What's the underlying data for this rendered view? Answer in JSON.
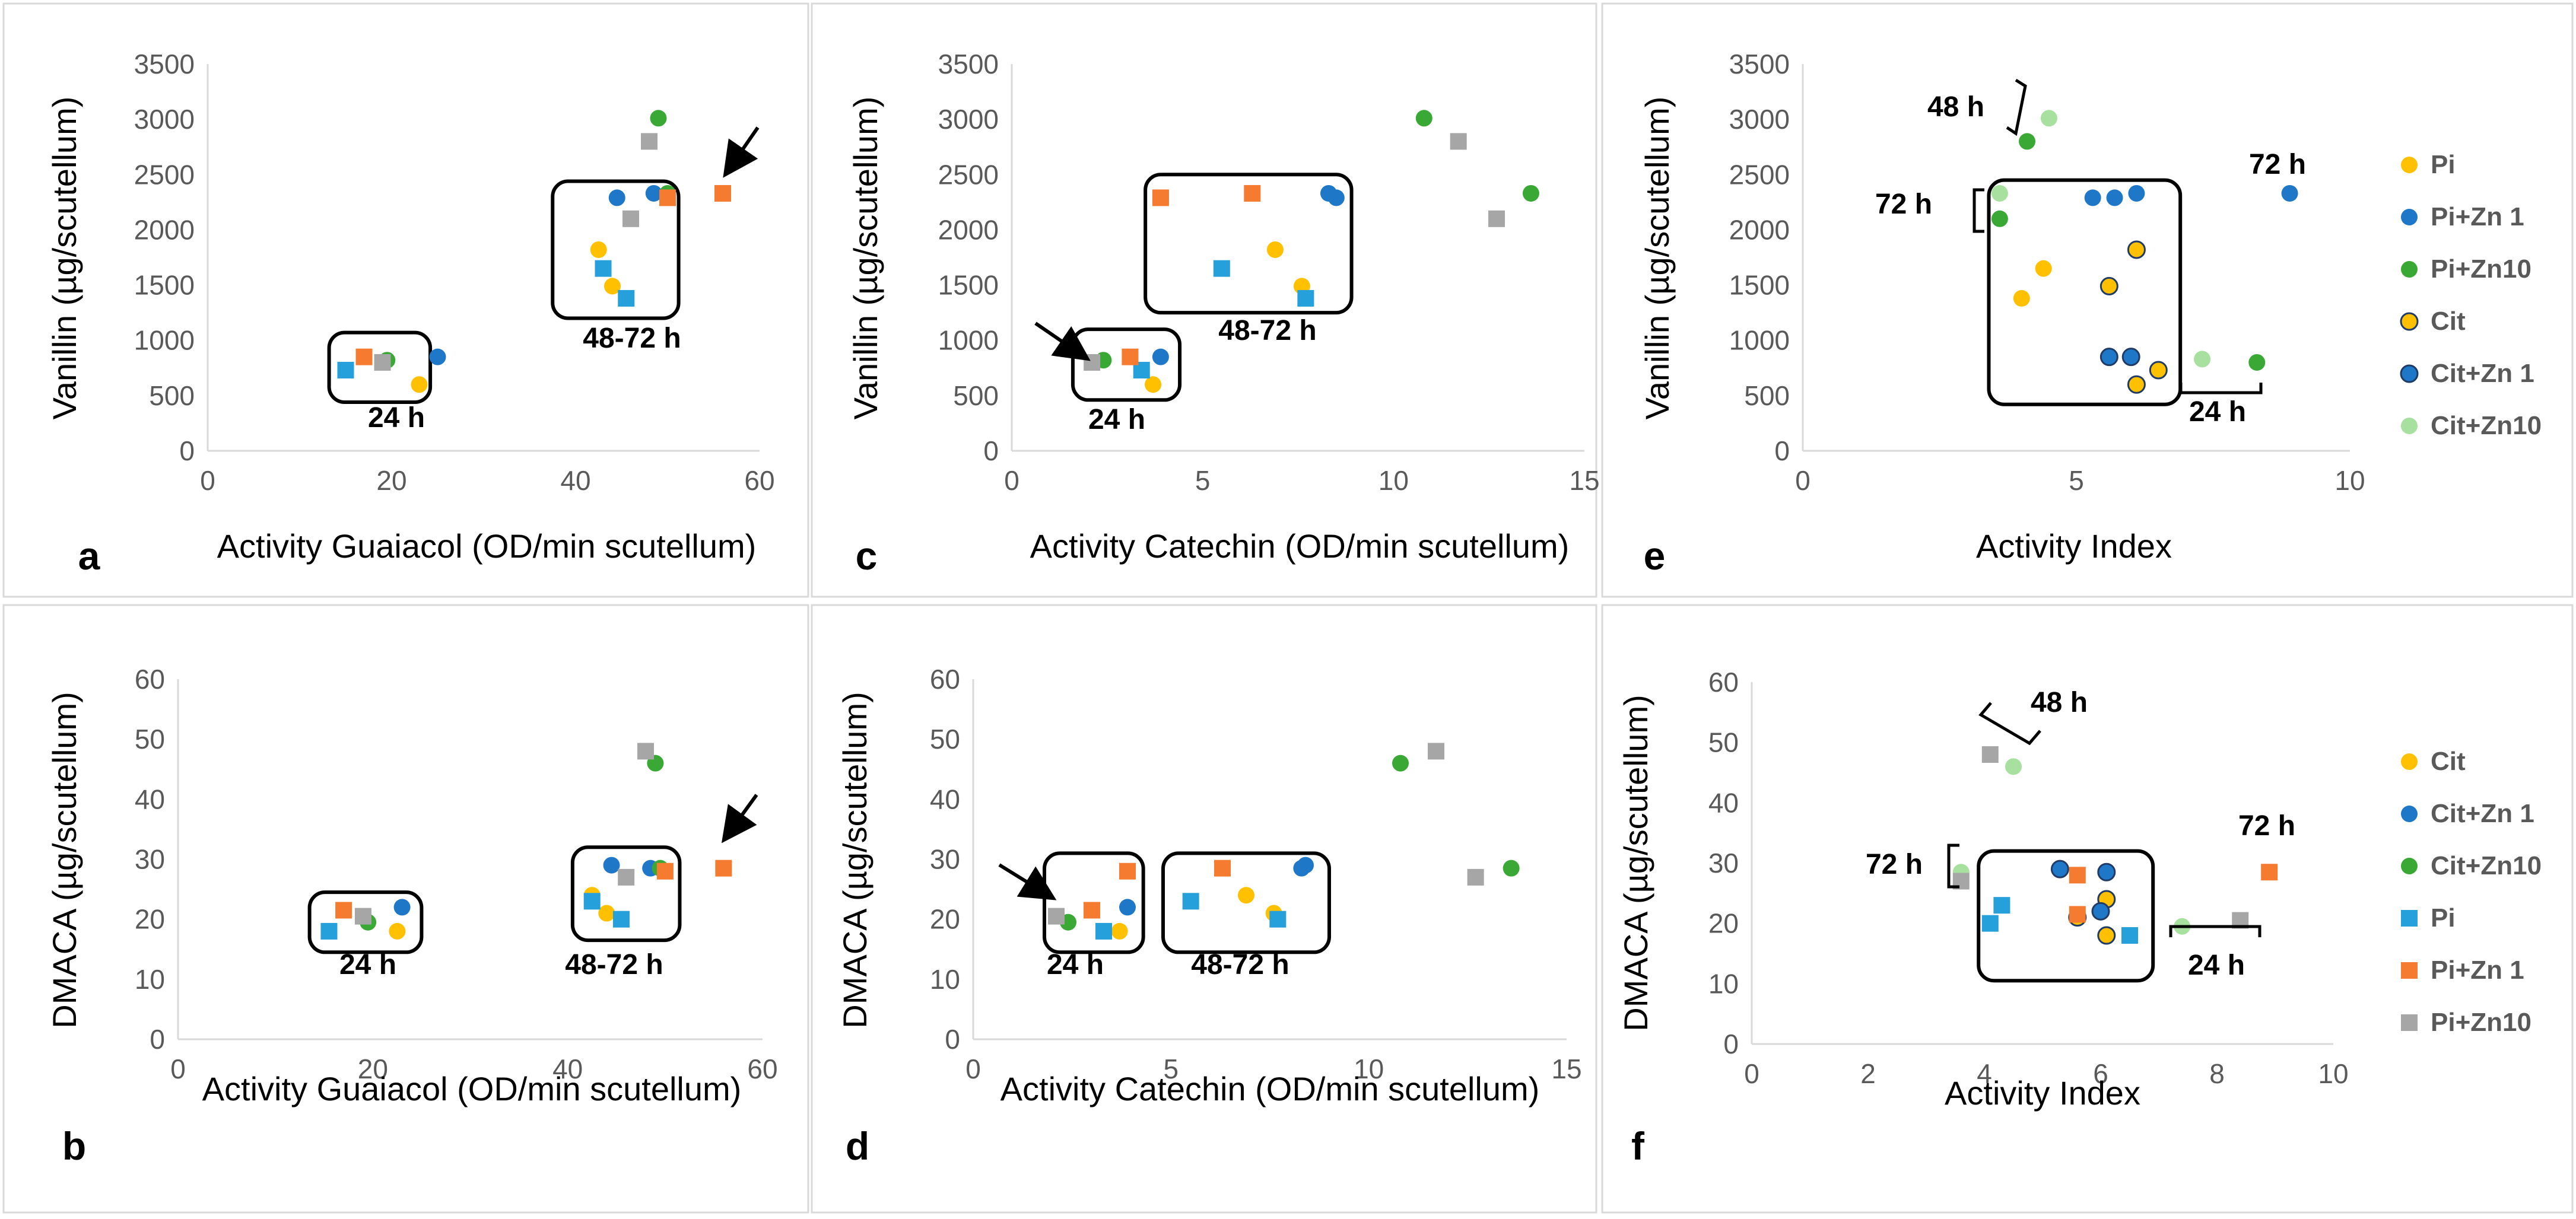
{
  "colors": {
    "Pi": "#ffc000",
    "Pi+Zn 1": "#1f77c8",
    "Pi+Zn10": "#3aa835",
    "Cit": "#ffc000",
    "Cit+Zn 1": "#1f77c8",
    "Cit+Zn10": "#a8e0a0",
    "sq_Pi": "#26a0da",
    "sq_PiZn1": "#f47b30",
    "sq_PiZn10": "#a6a6a6"
  },
  "chart_data": [
    {
      "id": "a",
      "type": "scatter",
      "panel_label": "a",
      "xlabel": "Activity Guaiacol (OD/min scutellum)",
      "ylabel": "Vanillin (µg/scutellum)",
      "xlim": [
        0,
        60
      ],
      "ylim": [
        0,
        3500
      ],
      "xticks": [
        0,
        20,
        40,
        60
      ],
      "yticks": [
        0,
        500,
        1000,
        1500,
        2000,
        2500,
        3000,
        3500
      ],
      "xtick_labels": [
        "0",
        "20",
        "40",
        "60"
      ],
      "ytick_labels": [
        "0",
        "500",
        "1000",
        "1500",
        "2000",
        "2500",
        "3000",
        "3500"
      ],
      "points": [
        {
          "series": "Pi",
          "marker": "circle",
          "x": 23,
          "y": 600
        },
        {
          "series": "Pi+Zn 1",
          "marker": "circle",
          "x": 25,
          "y": 850
        },
        {
          "series": "Pi+Zn10",
          "marker": "circle",
          "x": 19.5,
          "y": 820
        },
        {
          "series": "Pi",
          "marker": "square",
          "x": 15,
          "y": 730
        },
        {
          "series": "Pi+Zn 1",
          "marker": "square",
          "x": 17,
          "y": 850
        },
        {
          "series": "Pi+Zn10",
          "marker": "square",
          "x": 19,
          "y": 800
        },
        {
          "series": "Pi",
          "marker": "circle",
          "x": 42.5,
          "y": 1820
        },
        {
          "series": "Pi",
          "marker": "circle",
          "x": 44,
          "y": 1490
        },
        {
          "series": "Pi+Zn 1",
          "marker": "circle",
          "x": 44.5,
          "y": 2290
        },
        {
          "series": "Pi+Zn 1",
          "marker": "circle",
          "x": 48.5,
          "y": 2330
        },
        {
          "series": "Pi+Zn10",
          "marker": "circle",
          "x": 49,
          "y": 3010
        },
        {
          "series": "Pi+Zn10",
          "marker": "circle",
          "x": 50,
          "y": 2330
        },
        {
          "series": "Pi",
          "marker": "square",
          "x": 43,
          "y": 1650
        },
        {
          "series": "Pi",
          "marker": "square",
          "x": 45.5,
          "y": 1380
        },
        {
          "series": "Pi+Zn 1",
          "marker": "square",
          "x": 50,
          "y": 2290
        },
        {
          "series": "Pi+Zn 1",
          "marker": "square",
          "x": 56,
          "y": 2330
        },
        {
          "series": "Pi+Zn10",
          "marker": "square",
          "x": 46,
          "y": 2100
        },
        {
          "series": "Pi+Zn10",
          "marker": "square",
          "x": 48,
          "y": 2800
        }
      ],
      "boxes": [
        {
          "label": "24 h",
          "x0": 13.2,
          "x1": 24.2,
          "y0": 440,
          "y1": 1070
        },
        {
          "label": "48-72 h",
          "x0": 37.5,
          "x1": 51.2,
          "y0": 1200,
          "y1": 2440
        }
      ],
      "labels_text": [
        "24 h",
        "48-72 h"
      ]
    },
    {
      "id": "b",
      "type": "scatter",
      "panel_label": "b",
      "xlabel": "Activity Guaiacol (OD/min scutellum)",
      "ylabel": "DMACA (µg/scutellum)",
      "xlim": [
        0,
        60
      ],
      "ylim": [
        0,
        60
      ],
      "xticks": [
        0,
        20,
        40,
        60
      ],
      "yticks": [
        0,
        10,
        20,
        30,
        40,
        50,
        60
      ],
      "xtick_labels": [
        "0",
        "20",
        "40",
        "60"
      ],
      "ytick_labels": [
        "0",
        "10",
        "20",
        "30",
        "40",
        "50",
        "60"
      ],
      "points": [
        {
          "series": "Pi",
          "marker": "circle",
          "x": 22.5,
          "y": 18
        },
        {
          "series": "Pi+Zn 1",
          "marker": "circle",
          "x": 23,
          "y": 22
        },
        {
          "series": "Pi+Zn10",
          "marker": "circle",
          "x": 19.5,
          "y": 19.5
        },
        {
          "series": "Pi",
          "marker": "square",
          "x": 15.5,
          "y": 18
        },
        {
          "series": "Pi+Zn 1",
          "marker": "square",
          "x": 17,
          "y": 21.5
        },
        {
          "series": "Pi+Zn10",
          "marker": "square",
          "x": 19,
          "y": 20.5
        },
        {
          "series": "Pi",
          "marker": "circle",
          "x": 42.5,
          "y": 24
        },
        {
          "series": "Pi",
          "marker": "circle",
          "x": 44,
          "y": 21
        },
        {
          "series": "Pi+Zn 1",
          "marker": "circle",
          "x": 44.5,
          "y": 29
        },
        {
          "series": "Pi+Zn 1",
          "marker": "circle",
          "x": 48.5,
          "y": 28.5
        },
        {
          "series": "Pi+Zn10",
          "marker": "circle",
          "x": 49,
          "y": 46
        },
        {
          "series": "Pi+Zn10",
          "marker": "circle",
          "x": 49.5,
          "y": 28.5
        },
        {
          "series": "Pi",
          "marker": "square",
          "x": 42.5,
          "y": 23
        },
        {
          "series": "Pi",
          "marker": "square",
          "x": 45.5,
          "y": 20
        },
        {
          "series": "Pi+Zn 1",
          "marker": "square",
          "x": 50,
          "y": 28
        },
        {
          "series": "Pi+Zn 1",
          "marker": "square",
          "x": 56,
          "y": 28.5
        },
        {
          "series": "Pi+Zn10",
          "marker": "square",
          "x": 46,
          "y": 27
        },
        {
          "series": "Pi+Zn10",
          "marker": "square",
          "x": 48,
          "y": 48
        }
      ],
      "boxes": [
        {
          "label": "24 h",
          "x0": 13.5,
          "x1": 25,
          "y0": 14.5,
          "y1": 24.5
        },
        {
          "label": "48-72 h",
          "x0": 40.5,
          "x1": 51.5,
          "y0": 16.5,
          "y1": 32
        }
      ],
      "labels_text": [
        "24 h",
        "48-72 h"
      ]
    },
    {
      "id": "c",
      "type": "scatter",
      "panel_label": "c",
      "xlabel": "Activity Catechin (OD/min scutellum)",
      "ylabel": "Vanillin (µg/scutellum)",
      "xlim": [
        0,
        15
      ],
      "ylim": [
        0,
        3500
      ],
      "xticks": [
        0,
        5,
        10,
        15
      ],
      "yticks": [
        0,
        500,
        1000,
        1500,
        2000,
        2500,
        3000,
        3500
      ],
      "xtick_labels": [
        "0",
        "5",
        "10",
        "15"
      ],
      "ytick_labels": [
        "0",
        "500",
        "1000",
        "1500",
        "2000",
        "2500",
        "3000",
        "3500"
      ],
      "points": [
        {
          "series": "Pi",
          "marker": "circle",
          "x": 3.7,
          "y": 600
        },
        {
          "series": "Pi+Zn 1",
          "marker": "circle",
          "x": 3.9,
          "y": 850
        },
        {
          "series": "Pi+Zn10",
          "marker": "circle",
          "x": 2.4,
          "y": 820
        },
        {
          "series": "Pi",
          "marker": "square",
          "x": 3.4,
          "y": 730
        },
        {
          "series": "Pi+Zn 1",
          "marker": "square",
          "x": 3.1,
          "y": 850
        },
        {
          "series": "Pi+Zn10",
          "marker": "square",
          "x": 2.1,
          "y": 800
        },
        {
          "series": "Pi",
          "marker": "circle",
          "x": 6.9,
          "y": 1820
        },
        {
          "series": "Pi",
          "marker": "circle",
          "x": 7.6,
          "y": 1490
        },
        {
          "series": "Pi+Zn 1",
          "marker": "circle",
          "x": 8.3,
          "y": 2330
        },
        {
          "series": "Pi+Zn 1",
          "marker": "circle",
          "x": 8.5,
          "y": 2290
        },
        {
          "series": "Pi+Zn10",
          "marker": "circle",
          "x": 10.8,
          "y": 3010
        },
        {
          "series": "Pi+Zn10",
          "marker": "circle",
          "x": 13.6,
          "y": 2330
        },
        {
          "series": "Pi",
          "marker": "square",
          "x": 5.5,
          "y": 1650
        },
        {
          "series": "Pi",
          "marker": "square",
          "x": 7.7,
          "y": 1380
        },
        {
          "series": "Pi+Zn 1",
          "marker": "square",
          "x": 3.9,
          "y": 2290
        },
        {
          "series": "Pi+Zn 1",
          "marker": "square",
          "x": 6.3,
          "y": 2330
        },
        {
          "series": "Pi+Zn10",
          "marker": "square",
          "x": 12.7,
          "y": 2100
        },
        {
          "series": "Pi+Zn10",
          "marker": "square",
          "x": 11.7,
          "y": 2800
        }
      ],
      "boxes": [
        {
          "label": "24 h",
          "x0": 1.6,
          "x1": 4.4,
          "y0": 460,
          "y1": 1100
        },
        {
          "label": "48-72 h",
          "x0": 3.5,
          "x1": 8.9,
          "y0": 1250,
          "y1": 2500
        }
      ],
      "labels_text": [
        "24 h",
        "48-72 h"
      ]
    },
    {
      "id": "d",
      "type": "scatter",
      "panel_label": "d",
      "xlabel": "Activity Catechin (OD/min scutellum)",
      "ylabel": "DMACA (µg/scutellum)",
      "xlim": [
        0,
        15
      ],
      "ylim": [
        0,
        60
      ],
      "xticks": [
        0,
        5,
        10,
        15
      ],
      "yticks": [
        0,
        10,
        20,
        30,
        40,
        50,
        60
      ],
      "xtick_labels": [
        "0",
        "5",
        "10",
        "15"
      ],
      "ytick_labels": [
        "0",
        "10",
        "20",
        "30",
        "40",
        "50",
        "60"
      ],
      "points": [
        {
          "series": "Pi",
          "marker": "circle",
          "x": 3.7,
          "y": 18
        },
        {
          "series": "Pi+Zn 1",
          "marker": "circle",
          "x": 3.9,
          "y": 22
        },
        {
          "series": "Pi+Zn10",
          "marker": "circle",
          "x": 2.4,
          "y": 19.5
        },
        {
          "series": "Pi",
          "marker": "square",
          "x": 3.3,
          "y": 18
        },
        {
          "series": "Pi+Zn 1",
          "marker": "square",
          "x": 3.0,
          "y": 21.5
        },
        {
          "series": "Pi+Zn10",
          "marker": "square",
          "x": 2.1,
          "y": 20.5
        },
        {
          "series": "Pi",
          "marker": "circle",
          "x": 6.9,
          "y": 24
        },
        {
          "series": "Pi",
          "marker": "circle",
          "x": 7.6,
          "y": 21
        },
        {
          "series": "Pi+Zn 1",
          "marker": "circle",
          "x": 8.3,
          "y": 28.5
        },
        {
          "series": "Pi+Zn 1",
          "marker": "circle",
          "x": 8.4,
          "y": 29
        },
        {
          "series": "Pi+Zn10",
          "marker": "circle",
          "x": 10.8,
          "y": 46
        },
        {
          "series": "Pi+Zn10",
          "marker": "circle",
          "x": 13.6,
          "y": 28.5
        },
        {
          "series": "Pi",
          "marker": "square",
          "x": 5.5,
          "y": 23
        },
        {
          "series": "Pi",
          "marker": "square",
          "x": 7.7,
          "y": 20
        },
        {
          "series": "Pi+Zn 1",
          "marker": "square",
          "x": 3.9,
          "y": 28
        },
        {
          "series": "Pi+Zn 1",
          "marker": "square",
          "x": 6.3,
          "y": 28.5
        },
        {
          "series": "Pi+Zn10",
          "marker": "square",
          "x": 12.7,
          "y": 27
        },
        {
          "series": "Pi+Zn10",
          "marker": "square",
          "x": 11.7,
          "y": 48
        }
      ],
      "boxes": [
        {
          "label": "24 h",
          "x0": 1.8,
          "x1": 4.3,
          "y0": 14.5,
          "y1": 31
        },
        {
          "label": "48-72 h",
          "x0": 4.8,
          "x1": 9.0,
          "y0": 14.5,
          "y1": 31
        }
      ],
      "labels_text": [
        "24 h",
        "48-72 h"
      ]
    },
    {
      "id": "e",
      "type": "scatter",
      "panel_label": "e",
      "xlabel": "Activity Index",
      "ylabel": "Vanillin (µg/scutellum)",
      "xlim": [
        0,
        10
      ],
      "ylim": [
        0,
        3500
      ],
      "xticks": [
        0,
        5,
        10
      ],
      "yticks": [
        0,
        500,
        1000,
        1500,
        2000,
        2500,
        3000,
        3500
      ],
      "xtick_labels": [
        "0",
        "5",
        "10"
      ],
      "ytick_labels": [
        "0",
        "500",
        "1000",
        "1500",
        "2000",
        "2500",
        "3000",
        "3500"
      ],
      "points": [
        {
          "series": "Pi",
          "marker": "circle",
          "x": 4.0,
          "y": 1380
        },
        {
          "series": "Pi",
          "marker": "circle",
          "x": 4.4,
          "y": 1650
        },
        {
          "series": "Pi+Zn 1",
          "marker": "circle",
          "x": 5.3,
          "y": 2290
        },
        {
          "series": "Pi+Zn 1",
          "marker": "circle",
          "x": 5.7,
          "y": 2290
        },
        {
          "series": "Pi+Zn 1",
          "marker": "circle",
          "x": 6.1,
          "y": 2330
        },
        {
          "series": "Pi+Zn 1",
          "marker": "circle",
          "x": 8.9,
          "y": 2330
        },
        {
          "series": "Pi+Zn10",
          "marker": "circle",
          "x": 4.1,
          "y": 2800
        },
        {
          "series": "Pi+Zn10",
          "marker": "circle",
          "x": 3.6,
          "y": 2100
        },
        {
          "series": "Pi+Zn10",
          "marker": "circle",
          "x": 8.3,
          "y": 800
        },
        {
          "series": "Cit",
          "marker": "circle",
          "x": 5.6,
          "y": 1490
        },
        {
          "series": "Cit",
          "marker": "circle",
          "x": 6.1,
          "y": 1820
        },
        {
          "series": "Cit",
          "marker": "circle",
          "x": 6.1,
          "y": 600
        },
        {
          "series": "Cit",
          "marker": "circle",
          "x": 6.5,
          "y": 730
        },
        {
          "series": "Cit+Zn 1",
          "marker": "circle",
          "x": 5.6,
          "y": 850
        },
        {
          "series": "Cit+Zn 1",
          "marker": "circle",
          "x": 6.0,
          "y": 850
        },
        {
          "series": "Cit+Zn10",
          "marker": "circle",
          "x": 4.5,
          "y": 3010
        },
        {
          "series": "Cit+Zn10",
          "marker": "circle",
          "x": 3.6,
          "y": 2330
        },
        {
          "series": "Cit+Zn10",
          "marker": "circle",
          "x": 7.3,
          "y": 830
        }
      ],
      "boxes": [
        {
          "label": "",
          "x0": 3.4,
          "x1": 6.9,
          "y0": 420,
          "y1": 2450
        }
      ],
      "labels_text": [
        "48 h",
        "72 h",
        "72 h",
        "24 h"
      ]
    },
    {
      "id": "f",
      "type": "scatter",
      "panel_label": "f",
      "xlabel": "Activity Index",
      "ylabel": "DMACA (µg/scutellum)",
      "xlim": [
        0,
        10
      ],
      "ylim": [
        0,
        60
      ],
      "xticks": [
        0,
        2,
        4,
        6,
        8,
        10
      ],
      "yticks": [
        0,
        10,
        20,
        30,
        40,
        50,
        60
      ],
      "xtick_labels": [
        "0",
        "2",
        "4",
        "6",
        "8",
        "10"
      ],
      "ytick_labels": [
        "0",
        "10",
        "20",
        "30",
        "40",
        "50",
        "60"
      ],
      "points": [
        {
          "series": "Cit",
          "marker": "circle",
          "x": 5.6,
          "y": 21
        },
        {
          "series": "Cit",
          "marker": "circle",
          "x": 6.1,
          "y": 24
        },
        {
          "series": "Cit",
          "marker": "circle",
          "x": 6.1,
          "y": 18
        },
        {
          "series": "Cit+Zn 1",
          "marker": "circle",
          "x": 5.3,
          "y": 29
        },
        {
          "series": "Cit+Zn 1",
          "marker": "circle",
          "x": 6.0,
          "y": 22
        },
        {
          "series": "Cit+Zn 1",
          "marker": "circle",
          "x": 6.1,
          "y": 28.5
        },
        {
          "series": "Cit+Zn10",
          "marker": "circle",
          "x": 4.5,
          "y": 46
        },
        {
          "series": "Cit+Zn10",
          "marker": "circle",
          "x": 3.6,
          "y": 28.5
        },
        {
          "series": "Cit+Zn10",
          "marker": "circle",
          "x": 7.4,
          "y": 19.5
        },
        {
          "series": "Pi",
          "marker": "square",
          "x": 4.3,
          "y": 23
        },
        {
          "series": "Pi",
          "marker": "square",
          "x": 4.1,
          "y": 20
        },
        {
          "series": "Pi",
          "marker": "square",
          "x": 6.5,
          "y": 18
        },
        {
          "series": "Pi+Zn 1",
          "marker": "square",
          "x": 5.6,
          "y": 28
        },
        {
          "series": "Pi+Zn 1",
          "marker": "square",
          "x": 5.6,
          "y": 21.5
        },
        {
          "series": "Pi+Zn 1",
          "marker": "square",
          "x": 8.9,
          "y": 28.5
        },
        {
          "series": "Pi+Zn10",
          "marker": "square",
          "x": 4.1,
          "y": 48
        },
        {
          "series": "Pi+Zn10",
          "marker": "square",
          "x": 3.6,
          "y": 27
        },
        {
          "series": "Pi+Zn10",
          "marker": "square",
          "x": 8.4,
          "y": 20.5
        }
      ],
      "boxes": [
        {
          "label": "",
          "x0": 3.9,
          "x1": 6.9,
          "y0": 10.5,
          "y1": 32
        }
      ],
      "labels_text": [
        "48 h",
        "72 h",
        "72 h",
        "24 h"
      ]
    }
  ],
  "legend_top": [
    "Pi",
    "Pi+Zn 1",
    "Pi+Zn10",
    "Cit",
    "Cit+Zn 1",
    "Cit+Zn10"
  ],
  "legend_bottom": [
    "Cit",
    "Cit+Zn 1",
    "Cit+Zn10",
    "Pi",
    "Pi+Zn 1",
    "Pi+Zn10"
  ]
}
